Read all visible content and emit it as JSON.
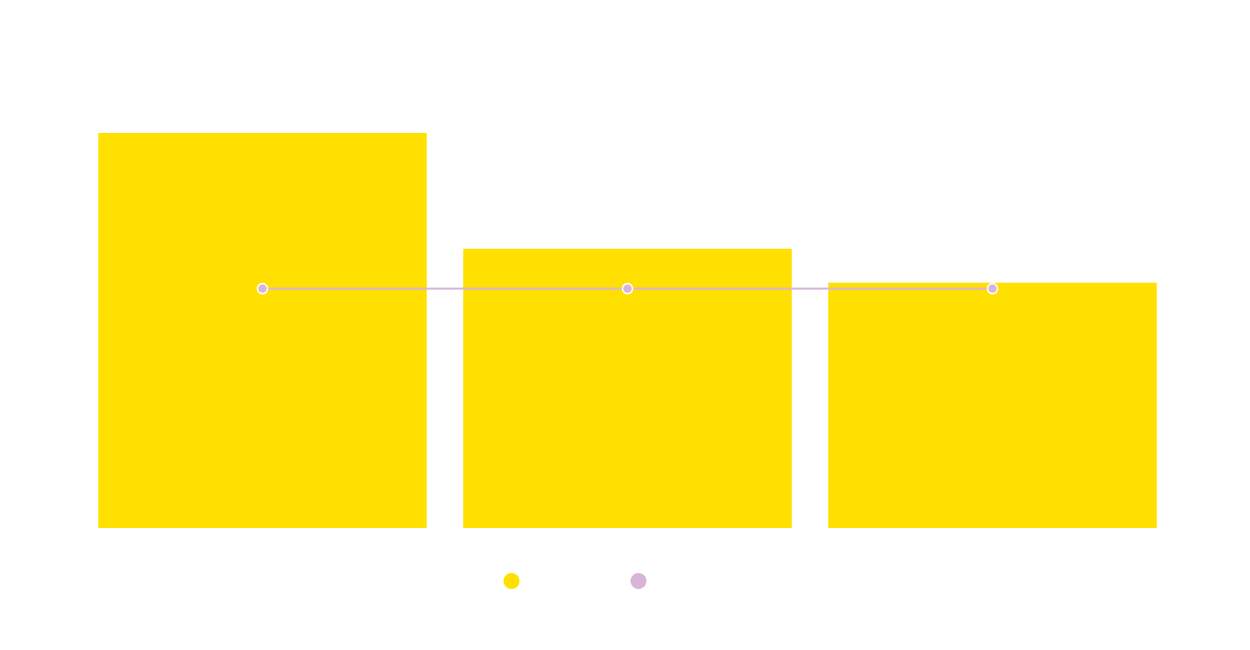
{
  "chart_data": {
    "type": "bar",
    "categories": [
      "",
      "",
      ""
    ],
    "series": [
      {
        "type": "bar",
        "color": "#FFE000",
        "values": [
          100,
          70.7,
          62.1
        ]
      },
      {
        "type": "line",
        "color": "#D8B4D8",
        "values": [
          60.6,
          60.6,
          60.6
        ]
      }
    ],
    "ylim": [
      0,
      100
    ],
    "grid": false,
    "legend": {
      "placement": "bottom-center",
      "markers": [
        {
          "color": "#FFE000"
        },
        {
          "color": "#D8B4D8"
        }
      ]
    }
  }
}
